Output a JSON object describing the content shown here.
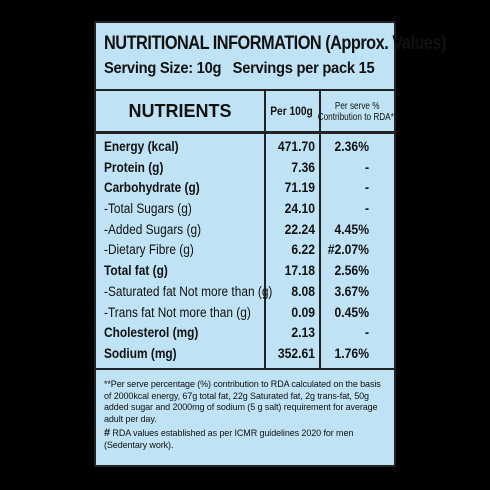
{
  "label": {
    "title": "NUTRITIONAL INFORMATION (Approx. Values)",
    "serving_size": "Serving Size: 10g",
    "servings_per_pack": "Servings per pack 15"
  },
  "table": {
    "headers": {
      "nutrients": "NUTRIENTS",
      "per100": "Per 100g",
      "rda_line1": "Per serve %",
      "rda_line2": "Contribution to RDA**"
    },
    "rows": [
      {
        "name": "Energy (kcal)",
        "per100": "471.70",
        "rda": "2.36%",
        "bold": true
      },
      {
        "name": "Protein (g)",
        "per100": "7.36",
        "rda": "-",
        "bold": true
      },
      {
        "name": "Carbohydrate (g)",
        "per100": "71.19",
        "rda": "-",
        "bold": true
      },
      {
        "name": "-Total Sugars (g)",
        "per100": "24.10",
        "rda": "-",
        "bold": false
      },
      {
        "name": "-Added Sugars (g)",
        "per100": "22.24",
        "rda": "4.45%",
        "bold": false
      },
      {
        "name": "-Dietary Fibre (g)",
        "per100": "6.22",
        "rda": "#2.07%",
        "bold": false
      },
      {
        "name": "Total fat (g)",
        "per100": "17.18",
        "rda": "2.56%",
        "bold": true
      },
      {
        "name": "-Saturated fat Not more than (g)",
        "per100": "8.08",
        "rda": "3.67%",
        "bold": false
      },
      {
        "name": "-Trans fat Not more than (g)",
        "per100": "0.09",
        "rda": "0.45%",
        "bold": false
      },
      {
        "name": "Cholesterol (mg)",
        "per100": "2.13",
        "rda": "-",
        "bold": true
      },
      {
        "name": "Sodium (mg)",
        "per100": "352.61",
        "rda": "1.76%",
        "bold": true
      }
    ]
  },
  "footnotes": {
    "rda_note": "**Per serve percentage (%) contribution to RDA calculated on the basis of 2000kcal energy, 67g total fat, 22g Saturated fat, 2g trans-fat, 50g added sugar and 2000mg of sodium (5 g salt) requirement for average adult per day.",
    "icmr_symbol": "#",
    "icmr_note": " RDA values established as per ICMR guidelines 2020 for men (Sedentary work)."
  },
  "colors": {
    "panel_bg": "#bfe3f5",
    "page_bg": "#000000",
    "text": "#111111"
  }
}
